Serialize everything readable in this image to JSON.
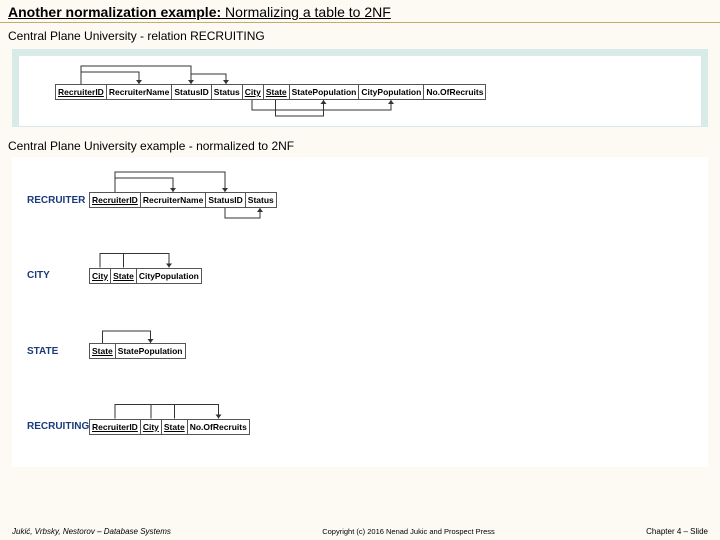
{
  "title_bold": "Another normalization example:",
  "title_rest": " Normalizing a table to 2NF",
  "subtitle1": "Central Plane University - relation RECRUITING",
  "subtitle2": "Central Plane University example - normalized to 2NF",
  "footer_left": "Jukić, Vrbsky, Nestorov – Database Systems",
  "footer_center": "Copyright (c) 2016 Nenad Jukic and Prospect Press",
  "footer_right": "Chapter 4 – Slide",
  "panel1": {
    "bg": "#d9ebe9",
    "attrs": [
      "RecruiterID",
      "RecruiterName",
      "StatusID",
      "Status",
      "City",
      "State",
      "StatePopulation",
      "CityPopulation",
      "No.OfRecruits"
    ],
    "key_idx": [
      0,
      4,
      5
    ],
    "arrow_color": "#333",
    "deps_top": [
      {
        "from": 0,
        "to": 1,
        "h": 12
      },
      {
        "from": 0,
        "to": 2,
        "h": 18
      },
      {
        "from": 2,
        "to": 3,
        "h": 10
      }
    ],
    "deps_bottom": [
      {
        "from": 4,
        "to": 7,
        "h": 10,
        "also_from": 5
      },
      {
        "from": 5,
        "to": 6,
        "h": 16
      }
    ]
  },
  "panel2": {
    "bg": "#ffffff",
    "label_color": "#1a3a7a",
    "arrow_color": "#333",
    "relations": [
      {
        "name": "RECRUITER",
        "attrs": [
          "RecruiterID",
          "RecruiterName",
          "StatusID",
          "Status"
        ],
        "key_idx": [
          0
        ],
        "deps_top": [
          {
            "from": 0,
            "to": 1,
            "h": 14
          },
          {
            "from": 0,
            "to": 2,
            "h": 20
          }
        ],
        "deps_bottom": [
          {
            "from": 2,
            "to": 3,
            "h": 10
          }
        ]
      },
      {
        "name": "CITY",
        "attrs": [
          "City",
          "State",
          "CityPopulation"
        ],
        "key_idx": [
          0,
          1
        ],
        "deps_top": [
          {
            "from": 0,
            "to": 2,
            "h": 14,
            "also_from": 1
          }
        ],
        "deps_bottom": []
      },
      {
        "name": "STATE",
        "attrs": [
          "State",
          "StatePopulation"
        ],
        "key_idx": [
          0
        ],
        "deps_top": [
          {
            "from": 0,
            "to": 1,
            "h": 12
          }
        ],
        "deps_bottom": []
      },
      {
        "name": "RECRUITING",
        "attrs": [
          "RecruiterID",
          "City",
          "State",
          "No.OfRecruits"
        ],
        "key_idx": [
          0,
          1,
          2
        ],
        "deps_top": [
          {
            "from": 0,
            "to": 3,
            "h": 14,
            "also_from": 1,
            "also_from2": 2
          }
        ],
        "deps_bottom": []
      }
    ]
  }
}
